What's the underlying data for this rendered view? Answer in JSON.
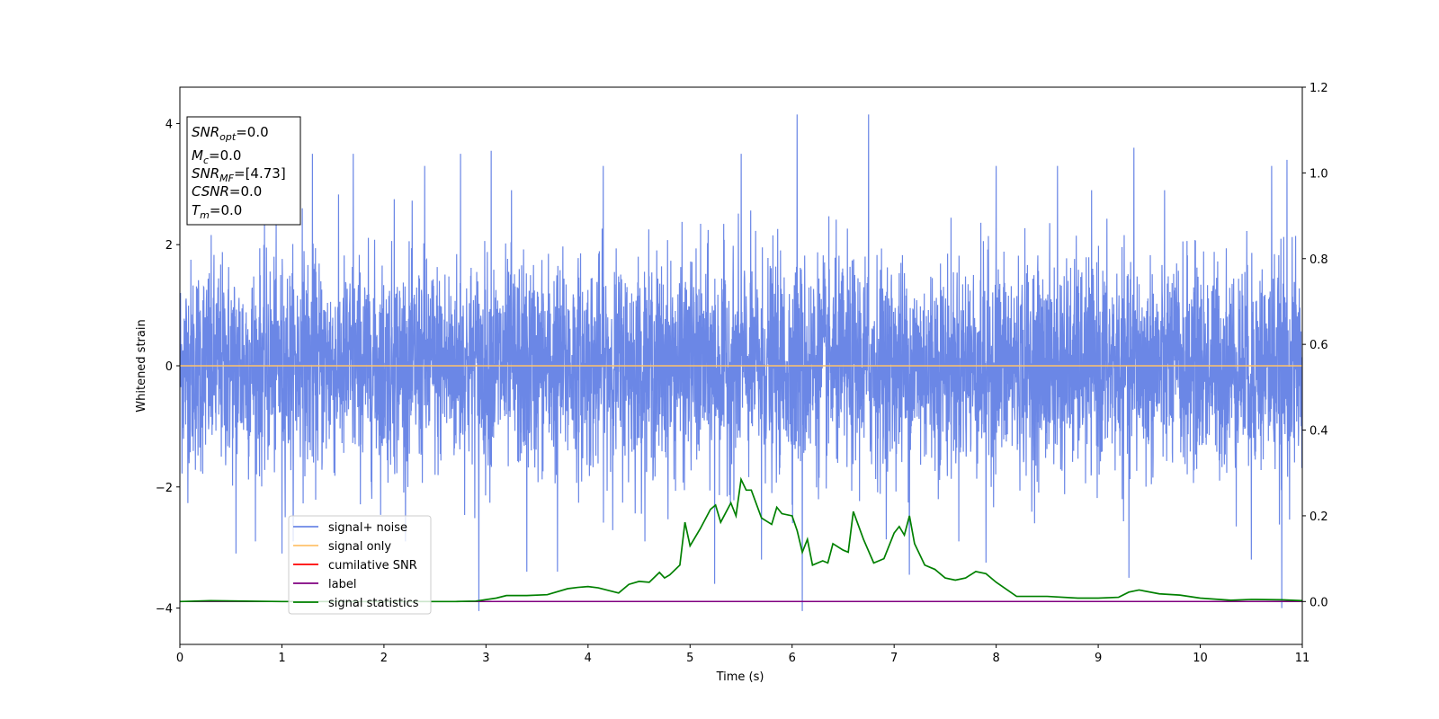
{
  "chart_data": {
    "type": "line",
    "xlabel": "Time (s)",
    "ylabel": "Whitened strain",
    "xlim": [
      0,
      11
    ],
    "ylim_left": [
      -4.6,
      4.6
    ],
    "ylim_right": [
      -0.1,
      1.2
    ],
    "x_ticks": [
      0,
      1,
      2,
      3,
      4,
      5,
      6,
      7,
      8,
      9,
      10,
      11
    ],
    "y_left_ticks": [
      -4,
      -2,
      0,
      2,
      4
    ],
    "y_right_ticks": [
      "0.0",
      "0.2",
      "0.4",
      "0.6",
      "0.8",
      "1.0",
      "1.2"
    ],
    "grid": false,
    "legend_position": "lower-left",
    "legend": [
      {
        "label": "signal+ noise",
        "color": "#6b87e6"
      },
      {
        "label": "signal only",
        "color": "#ffc36b"
      },
      {
        "label": "cumilative SNR",
        "color": "#ff0000"
      },
      {
        "label": "label",
        "color": "#800080"
      },
      {
        "label": "signal statistics",
        "color": "#008000"
      }
    ],
    "info_box": [
      {
        "main": "SNR",
        "sub": "opt",
        "value": "=0.0"
      },
      {
        "main": "M",
        "sub": "c",
        "value": "=0.0"
      },
      {
        "main": "SNR",
        "sub": "MF",
        "value": "=[4.73]"
      },
      {
        "main": "CSNR",
        "sub": "",
        "value": "=0.0"
      },
      {
        "main": "T",
        "sub": "m",
        "value": "=0.0"
      }
    ],
    "series": [
      {
        "name": "signal+ noise",
        "axis": "left",
        "description_kind": "noise envelope",
        "typical_range": [
          -1.9,
          1.9
        ],
        "spikes": [
          [
            1.3,
            3.5
          ],
          [
            1.7,
            3.5
          ],
          [
            2.4,
            3.3
          ],
          [
            2.75,
            3.5
          ],
          [
            3.05,
            3.55
          ],
          [
            3.7,
            3.7
          ],
          [
            4.15,
            3.3
          ],
          [
            5.5,
            3.5
          ],
          [
            6.05,
            4.15
          ],
          [
            6.75,
            4.15
          ],
          [
            8.0,
            3.3
          ],
          [
            8.6,
            3.3
          ],
          [
            9.35,
            3.6
          ],
          [
            10.7,
            3.3
          ],
          [
            10.85,
            3.4
          ],
          [
            1.2,
            2.6
          ],
          [
            2.1,
            2.75
          ],
          [
            3.25,
            2.9
          ],
          [
            0.55,
            -3.1
          ],
          [
            1.0,
            -3.1
          ],
          [
            2.93,
            -4.05
          ],
          [
            3.4,
            -3.4
          ],
          [
            3.7,
            -3.4
          ],
          [
            5.24,
            -3.6
          ],
          [
            5.7,
            -3.2
          ],
          [
            6.1,
            -4.05
          ],
          [
            7.15,
            -3.45
          ],
          [
            7.9,
            -3.25
          ],
          [
            9.3,
            -3.5
          ],
          [
            10.8,
            -4.0
          ],
          [
            10.5,
            -3.2
          ]
        ]
      },
      {
        "name": "signal only",
        "axis": "left",
        "x": [
          0,
          11
        ],
        "y": [
          0,
          0
        ]
      },
      {
        "name": "label",
        "axis": "right",
        "x": [
          0,
          11
        ],
        "y": [
          0.0,
          0.0
        ]
      },
      {
        "name": "signal statistics",
        "axis": "right",
        "x": [
          0.0,
          0.3,
          1.0,
          2.0,
          2.7,
          2.9,
          3.1,
          3.2,
          3.4,
          3.6,
          3.8,
          3.9,
          4.0,
          4.1,
          4.3,
          4.4,
          4.5,
          4.6,
          4.7,
          4.75,
          4.8,
          4.9,
          4.95,
          5.0,
          5.1,
          5.2,
          5.25,
          5.3,
          5.4,
          5.45,
          5.5,
          5.55,
          5.6,
          5.7,
          5.8,
          5.85,
          5.9,
          6.0,
          6.05,
          6.1,
          6.15,
          6.2,
          6.3,
          6.35,
          6.4,
          6.5,
          6.55,
          6.6,
          6.7,
          6.8,
          6.9,
          7.0,
          7.05,
          7.1,
          7.15,
          7.2,
          7.3,
          7.4,
          7.5,
          7.6,
          7.7,
          7.8,
          7.9,
          8.0,
          8.2,
          8.5,
          8.8,
          9.0,
          9.2,
          9.3,
          9.4,
          9.6,
          9.8,
          10.0,
          10.3,
          10.5,
          10.8,
          11.0
        ],
        "y": [
          0.0,
          0.002,
          0.0,
          0.0,
          0.0,
          0.001,
          0.008,
          0.014,
          0.014,
          0.016,
          0.03,
          0.033,
          0.035,
          0.032,
          0.02,
          0.04,
          0.047,
          0.045,
          0.068,
          0.055,
          0.062,
          0.085,
          0.185,
          0.13,
          0.17,
          0.215,
          0.225,
          0.185,
          0.23,
          0.2,
          0.285,
          0.26,
          0.26,
          0.195,
          0.18,
          0.22,
          0.205,
          0.2,
          0.165,
          0.115,
          0.145,
          0.085,
          0.095,
          0.09,
          0.135,
          0.12,
          0.115,
          0.21,
          0.145,
          0.09,
          0.1,
          0.16,
          0.175,
          0.155,
          0.2,
          0.135,
          0.085,
          0.075,
          0.055,
          0.05,
          0.055,
          0.07,
          0.065,
          0.045,
          0.012,
          0.012,
          0.008,
          0.008,
          0.01,
          0.022,
          0.027,
          0.018,
          0.015,
          0.008,
          0.003,
          0.005,
          0.004,
          0.002
        ]
      }
    ]
  }
}
